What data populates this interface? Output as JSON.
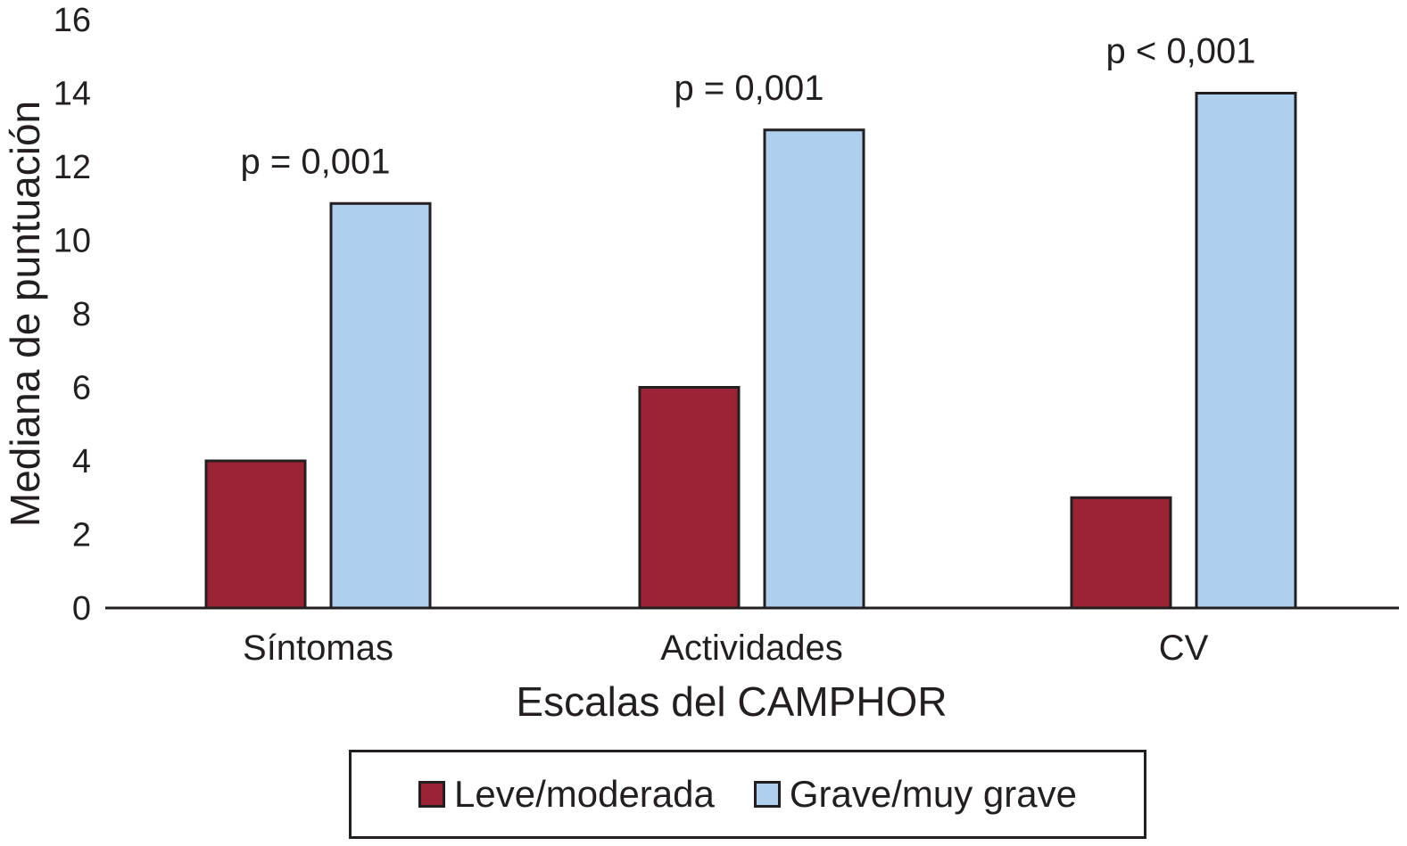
{
  "chart_data": {
    "type": "bar",
    "categories": [
      "Síntomas",
      "Actividades",
      "CV"
    ],
    "series": [
      {
        "name": "Leve/moderada",
        "values": [
          4,
          6,
          3
        ],
        "color": "#9b2335"
      },
      {
        "name": "Grave/muy grave",
        "values": [
          11,
          13,
          14
        ],
        "color": "#afcfee"
      }
    ],
    "annotations": [
      "p = 0,001",
      "p = 0,001",
      "p < 0,001"
    ],
    "xlabel": "Escalas del CAMPHOR",
    "ylabel": "Mediana de puntuación",
    "ylim": [
      0,
      16
    ],
    "yticks": [
      "0",
      "2",
      "4",
      "6",
      "8",
      "10",
      "12",
      "14",
      "16"
    ],
    "grid": false,
    "legend_position": "bottom"
  }
}
